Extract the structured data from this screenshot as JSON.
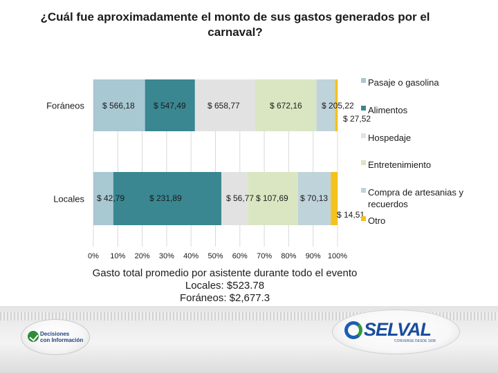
{
  "title_line1": "¿Cuál fue aproximadamente el monto de sus gastos generados por el",
  "title_line2": "carnaval?",
  "chart_data": {
    "type": "bar",
    "orientation": "horizontal",
    "stacked": "percent",
    "categories": [
      "Foráneos",
      "Locales"
    ],
    "series": [
      {
        "name": "Pasaje o gasolina",
        "values": [
          566.18,
          42.79
        ],
        "labels": [
          "$ 566,18",
          "$ 42,79"
        ],
        "color": "#a8c8d2"
      },
      {
        "name": "Alimentos",
        "values": [
          547.49,
          231.89
        ],
        "labels": [
          "$ 547,49",
          "$ 231,89"
        ],
        "color": "#3a8791"
      },
      {
        "name": "Hospedaje",
        "values": [
          658.77,
          56.77
        ],
        "labels": [
          "$ 658,77",
          "$ 56,77"
        ],
        "color": "#e2e2e2"
      },
      {
        "name": "Entretenimiento",
        "values": [
          672.16,
          107.69
        ],
        "labels": [
          "$ 672,16",
          "$ 107,69"
        ],
        "color": "#dae6c2"
      },
      {
        "name": "Compra de artesanias y recuerdos",
        "values": [
          205.22,
          70.13
        ],
        "labels": [
          "$ 205,22",
          "$ 70,13"
        ],
        "color": "#bfd3da"
      },
      {
        "name": "Otro",
        "values": [
          27.52,
          14.51
        ],
        "labels": [
          "$ 27,52",
          "$ 14,51"
        ],
        "color": "#f3c21c"
      }
    ],
    "xlim": [
      0,
      100
    ],
    "x_ticks": [
      "0%",
      "10%",
      "20%",
      "30%",
      "40%",
      "50%",
      "60%",
      "70%",
      "80%",
      "90%",
      "100%"
    ],
    "grid": true,
    "legend": "right"
  },
  "summary": {
    "line1": "Gasto total promedio por asistente durante todo el evento",
    "line2": "Locales: $523.78",
    "line3": "Foráneos: $2,677.3"
  },
  "logos": {
    "left_line1": "Decisiones",
    "left_line2": "con Información",
    "right_word": "SELVAL",
    "right_tag": "CONVERGE DESDE 1938"
  }
}
